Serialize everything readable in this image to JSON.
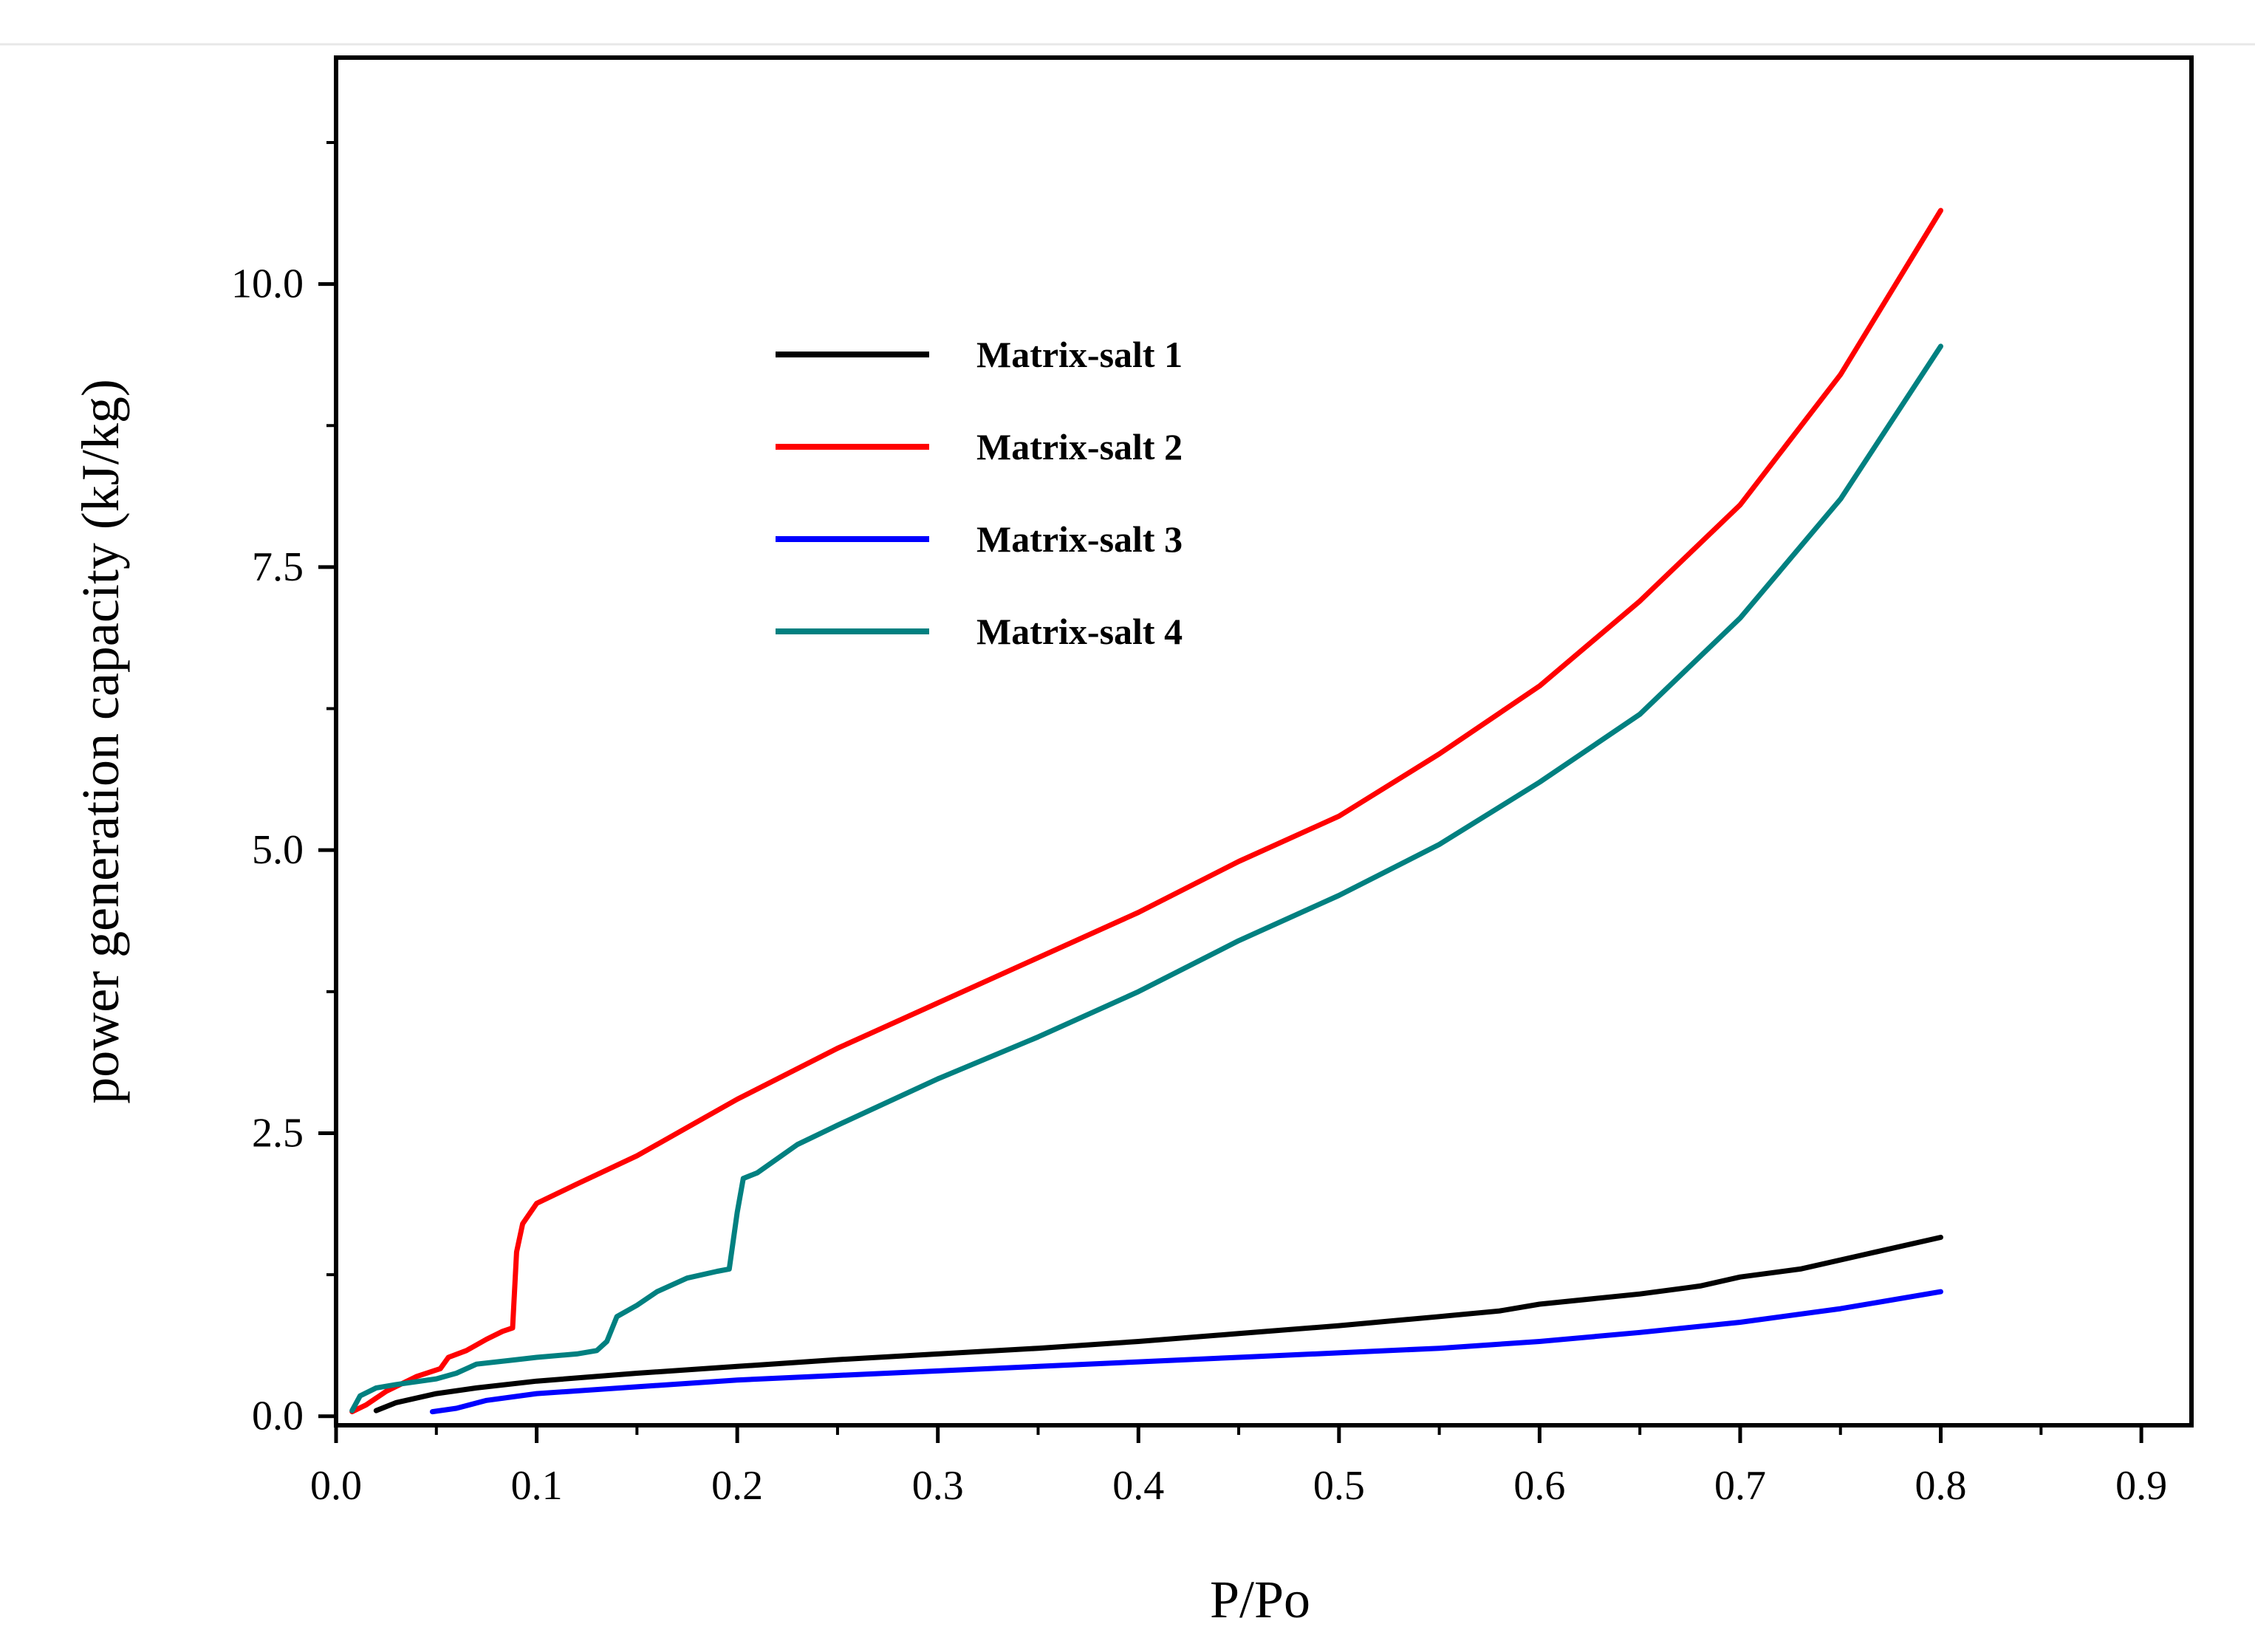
{
  "chart_data": {
    "type": "line",
    "title": "",
    "xlabel": "P/Po",
    "ylabel": "power generation capacity (kJ/kg)",
    "xlim": [
      0,
      0.925
    ],
    "ylim": [
      -0.08,
      12.0
    ],
    "xticks": [
      0.0,
      0.1,
      0.2,
      0.3,
      0.4,
      0.5,
      0.6,
      0.7,
      0.8,
      0.9
    ],
    "xtick_labels": [
      "0.0",
      "0.1",
      "0.2",
      "0.3",
      "0.4",
      "0.5",
      "0.6",
      "0.7",
      "0.8",
      "0.9"
    ],
    "yticks": [
      0.0,
      2.5,
      5.0,
      7.5,
      10.0
    ],
    "ytick_labels": [
      "0.0",
      "2.5",
      "5.0",
      "7.5",
      "10.0"
    ],
    "grid": false,
    "legend_position": "upper-left-center",
    "series": [
      {
        "name": "Matrix-salt 1",
        "color": "#000000",
        "points": [
          [
            0.02,
            0.05
          ],
          [
            0.03,
            0.12
          ],
          [
            0.05,
            0.2
          ],
          [
            0.07,
            0.25
          ],
          [
            0.1,
            0.31
          ],
          [
            0.15,
            0.38
          ],
          [
            0.2,
            0.44
          ],
          [
            0.25,
            0.5
          ],
          [
            0.3,
            0.55
          ],
          [
            0.35,
            0.6
          ],
          [
            0.4,
            0.66
          ],
          [
            0.45,
            0.73
          ],
          [
            0.5,
            0.8
          ],
          [
            0.55,
            0.88
          ],
          [
            0.58,
            0.93
          ],
          [
            0.6,
            0.99
          ],
          [
            0.65,
            1.08
          ],
          [
            0.68,
            1.15
          ],
          [
            0.7,
            1.23
          ],
          [
            0.73,
            1.3
          ],
          [
            0.76,
            1.42
          ],
          [
            0.8,
            1.58
          ]
        ]
      },
      {
        "name": "Matrix-salt 2",
        "color": "#ff0000",
        "points": [
          [
            0.008,
            0.04
          ],
          [
            0.015,
            0.1
          ],
          [
            0.025,
            0.22
          ],
          [
            0.04,
            0.35
          ],
          [
            0.052,
            0.42
          ],
          [
            0.056,
            0.52
          ],
          [
            0.065,
            0.58
          ],
          [
            0.075,
            0.68
          ],
          [
            0.083,
            0.75
          ],
          [
            0.088,
            0.78
          ],
          [
            0.09,
            1.45
          ],
          [
            0.093,
            1.7
          ],
          [
            0.1,
            1.88
          ],
          [
            0.12,
            2.05
          ],
          [
            0.15,
            2.3
          ],
          [
            0.2,
            2.8
          ],
          [
            0.25,
            3.25
          ],
          [
            0.3,
            3.65
          ],
          [
            0.35,
            4.05
          ],
          [
            0.4,
            4.45
          ],
          [
            0.45,
            4.9
          ],
          [
            0.5,
            5.3
          ],
          [
            0.55,
            5.85
          ],
          [
            0.6,
            6.45
          ],
          [
            0.65,
            7.2
          ],
          [
            0.7,
            8.05
          ],
          [
            0.75,
            9.2
          ],
          [
            0.8,
            10.65
          ]
        ]
      },
      {
        "name": "Matrix-salt 3",
        "color": "#0000ff",
        "points": [
          [
            0.048,
            0.04
          ],
          [
            0.06,
            0.07
          ],
          [
            0.075,
            0.14
          ],
          [
            0.1,
            0.2
          ],
          [
            0.15,
            0.26
          ],
          [
            0.2,
            0.32
          ],
          [
            0.25,
            0.36
          ],
          [
            0.3,
            0.4
          ],
          [
            0.35,
            0.44
          ],
          [
            0.4,
            0.48
          ],
          [
            0.45,
            0.52
          ],
          [
            0.5,
            0.56
          ],
          [
            0.55,
            0.6
          ],
          [
            0.6,
            0.66
          ],
          [
            0.65,
            0.74
          ],
          [
            0.7,
            0.83
          ],
          [
            0.75,
            0.95
          ],
          [
            0.8,
            1.1
          ]
        ]
      },
      {
        "name": "Matrix-salt 4",
        "color": "#008080",
        "points": [
          [
            0.008,
            0.05
          ],
          [
            0.012,
            0.18
          ],
          [
            0.02,
            0.25
          ],
          [
            0.03,
            0.28
          ],
          [
            0.05,
            0.33
          ],
          [
            0.06,
            0.38
          ],
          [
            0.07,
            0.46
          ],
          [
            0.09,
            0.5
          ],
          [
            0.1,
            0.52
          ],
          [
            0.12,
            0.55
          ],
          [
            0.13,
            0.58
          ],
          [
            0.135,
            0.66
          ],
          [
            0.14,
            0.88
          ],
          [
            0.15,
            0.98
          ],
          [
            0.16,
            1.1
          ],
          [
            0.175,
            1.22
          ],
          [
            0.19,
            1.28
          ],
          [
            0.196,
            1.3
          ],
          [
            0.2,
            1.8
          ],
          [
            0.203,
            2.1
          ],
          [
            0.21,
            2.15
          ],
          [
            0.23,
            2.4
          ],
          [
            0.25,
            2.57
          ],
          [
            0.3,
            2.98
          ],
          [
            0.35,
            3.35
          ],
          [
            0.4,
            3.75
          ],
          [
            0.45,
            4.2
          ],
          [
            0.5,
            4.6
          ],
          [
            0.55,
            5.05
          ],
          [
            0.6,
            5.6
          ],
          [
            0.65,
            6.2
          ],
          [
            0.7,
            7.05
          ],
          [
            0.75,
            8.1
          ],
          [
            0.8,
            9.45
          ]
        ]
      }
    ]
  }
}
